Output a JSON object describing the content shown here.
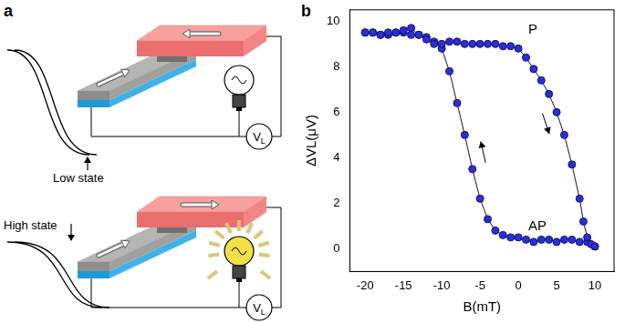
{
  "panel_labels": [
    "a",
    "b"
  ],
  "diagram": {
    "states": [
      {
        "label": "Low state",
        "lit": false
      },
      {
        "label": "High state",
        "lit": true
      }
    ],
    "meter": "VL"
  },
  "chart_data": {
    "type": "scatter",
    "x_label": "B(mT)",
    "y_label": "ΔVL(μV)",
    "xlim": [
      -22,
      12.5
    ],
    "xticks": [
      -20,
      -15,
      -10,
      -5,
      0,
      5,
      10
    ],
    "ylim": [
      -1,
      10.5
    ],
    "yticks": [
      0,
      2,
      4,
      6,
      8,
      10
    ],
    "grid": false,
    "marker": "circle",
    "line_style": "solid",
    "series": [
      {
        "color": "#2e2ed6",
        "x": [
          -20,
          -19,
          -18,
          -17,
          -16,
          -15,
          -14,
          -13,
          -12,
          -11,
          -10,
          -9,
          -8,
          -7,
          -6,
          -5,
          -4,
          -3,
          -2,
          -1,
          0,
          1,
          2,
          3,
          4,
          5,
          6,
          7,
          8,
          8.5,
          9,
          9.5,
          10
        ],
        "values": [
          9.5,
          9.5,
          9.4,
          9.5,
          9.5,
          9.6,
          9.7,
          9.4,
          9.2,
          9.0,
          9.0,
          9.1,
          9.1,
          9.0,
          9.0,
          9.0,
          9.0,
          9.0,
          8.9,
          8.9,
          8.8,
          8.4,
          7.9,
          7.4,
          6.8,
          6.0,
          5.0,
          3.7,
          2.2,
          1.2,
          0.5,
          0.2,
          0.1
        ]
      },
      {
        "color": "#2e2ed6",
        "x": [
          10,
          9,
          8,
          7,
          6,
          5,
          4,
          3,
          2,
          1,
          0,
          -1,
          -2,
          -3,
          -4,
          -5,
          -6,
          -7,
          -8,
          -9,
          -10,
          -11,
          -12,
          -13,
          -14,
          -15,
          -16,
          -17,
          -18,
          -19,
          -20
        ],
        "values": [
          0.1,
          0.3,
          0.3,
          0.4,
          0.4,
          0.3,
          0.4,
          0.4,
          0.3,
          0.4,
          0.5,
          0.5,
          0.6,
          0.8,
          1.3,
          2.2,
          3.5,
          5.0,
          6.4,
          7.8,
          8.8,
          9.1,
          9.3,
          9.4,
          9.4,
          9.5,
          9.5,
          9.4,
          9.4,
          9.5,
          9.5
        ]
      }
    ],
    "annotations": [
      {
        "text": "P",
        "x": 1.3,
        "y": 9.6
      },
      {
        "text": "AP",
        "x": 1.3,
        "y": 1.0
      }
    ]
  }
}
